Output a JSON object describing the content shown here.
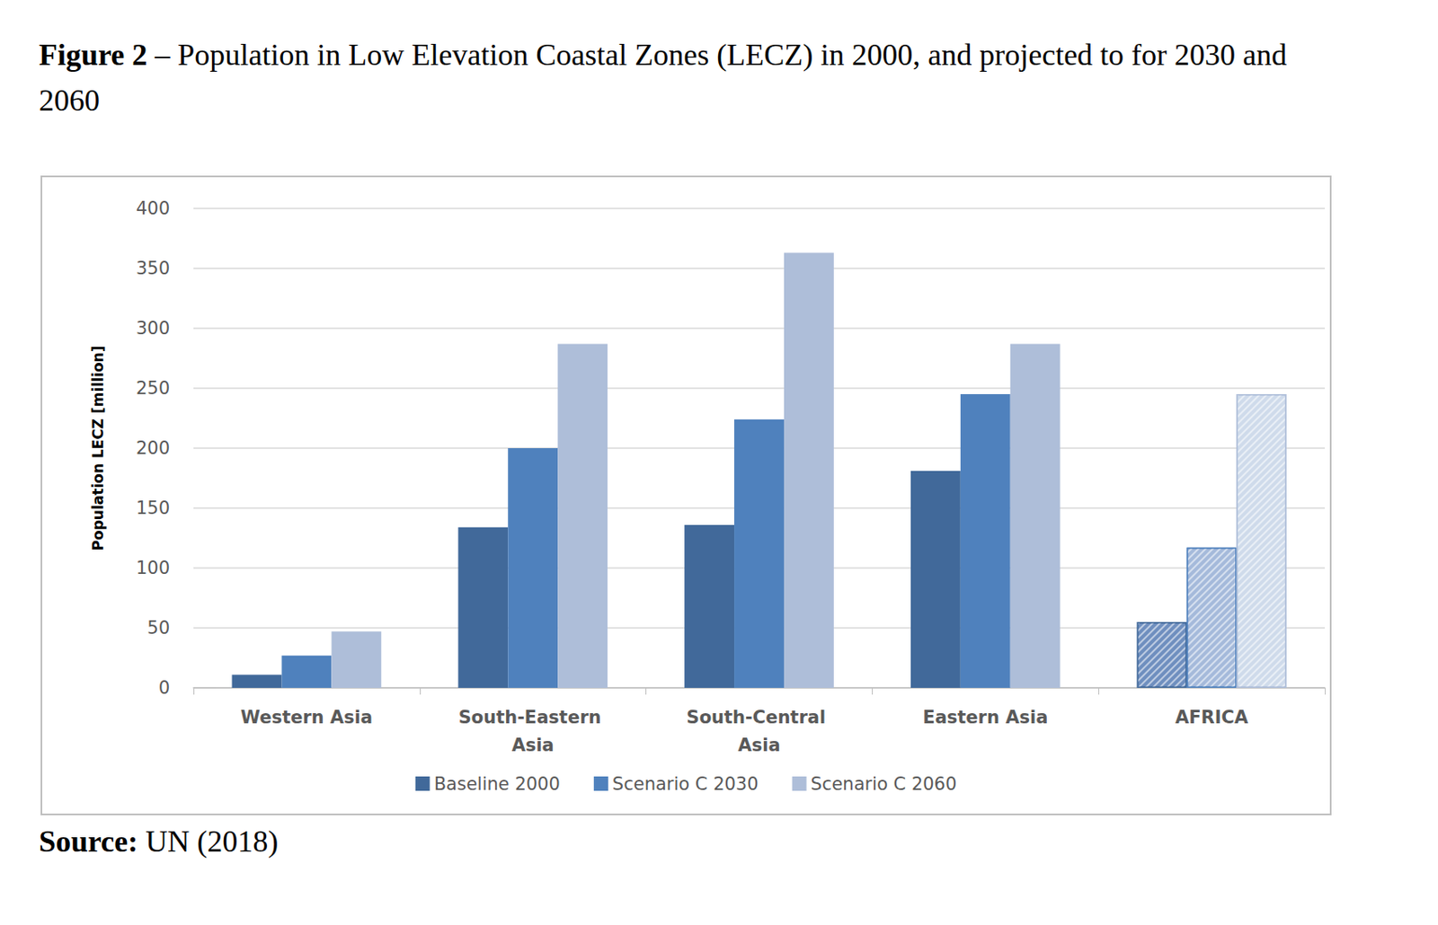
{
  "chart_data": {
    "type": "bar",
    "title": "Figure 2 – Population in Low Elevation Coastal Zones (LECZ) in 2000, and projected to for 2030 and 2060",
    "source": "Source: UN (2018)",
    "y_label": "Population LECZ [million]",
    "categories": [
      "Western Asia",
      "South-Eastern Asia",
      "South-Central Asia",
      "Eastern Asia",
      "AFRICA"
    ],
    "series": [
      {
        "name": "Baseline 2000",
        "color": "#41699a",
        "colors": [
          "#41699a",
          "#41699a",
          "#41699a",
          "#41699a",
          "#6f8fbf"
        ],
        "values": [
          11,
          134,
          136,
          181,
          55
        ]
      },
      {
        "name": "Scenario C 2030",
        "color": "#4f81bd",
        "colors": [
          "#4f81bd",
          "#4f81bd",
          "#4f81bd",
          "#4f81bd",
          "#a5badb"
        ],
        "values": [
          27,
          200,
          224,
          245,
          117
        ]
      },
      {
        "name": "Scenario C 2060",
        "color": "#aebed9",
        "colors": [
          "#aebed9",
          "#aebed9",
          "#aebed9",
          "#aebed9",
          "#cfdbeb"
        ],
        "values": [
          47,
          287,
          363,
          287,
          245
        ]
      }
    ],
    "ylim": [
      0,
      400
    ],
    "yticks": [
      0,
      50,
      100,
      150,
      200,
      250,
      300,
      350,
      400
    ],
    "grid": true,
    "legend": "bottom"
  }
}
